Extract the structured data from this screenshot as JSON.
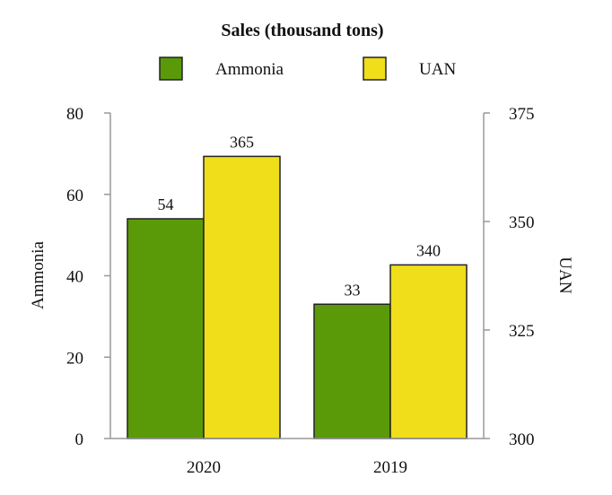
{
  "chart_data": {
    "type": "bar",
    "title": "Sales (thousand tons)",
    "categories": [
      "2020",
      "2019"
    ],
    "series": [
      {
        "name": "Ammonia",
        "values": [
          54,
          33
        ],
        "axis": "left",
        "color": "#5a9a08"
      },
      {
        "name": "UAN",
        "values": [
          365,
          340
        ],
        "axis": "right",
        "color": "#f0de1a"
      }
    ],
    "y_left": {
      "label": "Ammonia",
      "range": [
        0,
        80
      ],
      "ticks": [
        "0",
        "20",
        "40",
        "60",
        "80"
      ]
    },
    "y_right": {
      "label": "UAN",
      "range": [
        300,
        375
      ],
      "ticks": [
        "300",
        "325",
        "350",
        "375"
      ]
    },
    "legend": {
      "position": "top"
    },
    "grid": false
  }
}
